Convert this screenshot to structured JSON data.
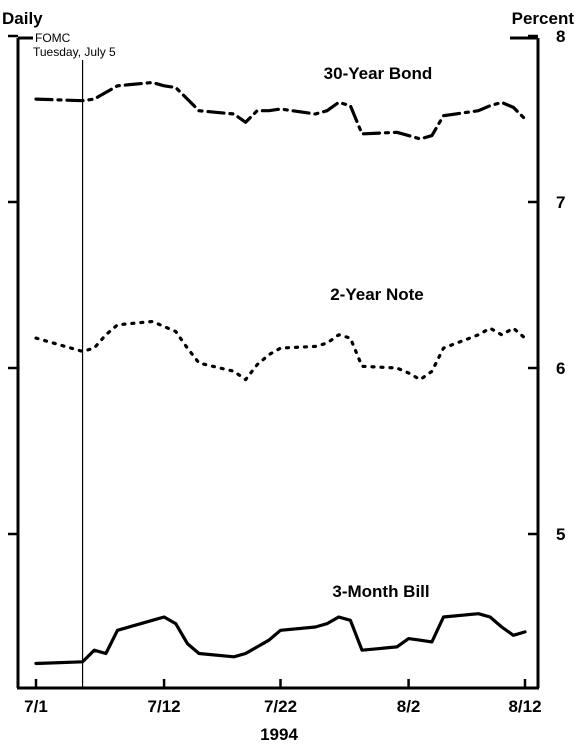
{
  "chart_data": {
    "type": "line",
    "top_left_label": "Daily",
    "top_right_label": "Percent",
    "event_label": "FOMC",
    "event_sublabel": "Tuesday, July 5",
    "event_x": "1994-07-05",
    "xlabel": "1994",
    "x_ticks": [
      {
        "date": "1994-07-01",
        "label": "7/1"
      },
      {
        "date": "1994-07-12",
        "label": "7/12"
      },
      {
        "date": "1994-07-22",
        "label": "7/22"
      },
      {
        "date": "1994-08-02",
        "label": "8/2"
      },
      {
        "date": "1994-08-12",
        "label": "8/12"
      }
    ],
    "x_range": [
      "1994-07-01",
      "1994-08-12"
    ],
    "y_ticks": [
      {
        "value": 5,
        "label": "5"
      },
      {
        "value": 6,
        "label": "6"
      },
      {
        "value": 7,
        "label": "7"
      },
      {
        "value": 8,
        "label": "8"
      }
    ],
    "ylim": [
      4.0,
      8.0
    ],
    "grid": false,
    "series": [
      {
        "name": "30-Year Bond",
        "style": "dashdot",
        "color": "#000000",
        "points": [
          [
            "1994-07-01",
            7.62
          ],
          [
            "1994-07-05",
            7.61
          ],
          [
            "1994-07-06",
            7.62
          ],
          [
            "1994-07-07",
            7.66
          ],
          [
            "1994-07-08",
            7.7
          ],
          [
            "1994-07-11",
            7.72
          ],
          [
            "1994-07-12",
            7.7
          ],
          [
            "1994-07-13",
            7.69
          ],
          [
            "1994-07-14",
            7.62
          ],
          [
            "1994-07-15",
            7.55
          ],
          [
            "1994-07-18",
            7.53
          ],
          [
            "1994-07-19",
            7.48
          ],
          [
            "1994-07-20",
            7.55
          ],
          [
            "1994-07-21",
            7.55
          ],
          [
            "1994-07-22",
            7.56
          ],
          [
            "1994-07-25",
            7.53
          ],
          [
            "1994-07-26",
            7.55
          ],
          [
            "1994-07-27",
            7.6
          ],
          [
            "1994-07-28",
            7.58
          ],
          [
            "1994-07-29",
            7.41
          ],
          [
            "1994-08-01",
            7.42
          ],
          [
            "1994-08-02",
            7.4
          ],
          [
            "1994-08-03",
            7.38
          ],
          [
            "1994-08-04",
            7.4
          ],
          [
            "1994-08-05",
            7.52
          ],
          [
            "1994-08-08",
            7.55
          ],
          [
            "1994-08-09",
            7.58
          ],
          [
            "1994-08-10",
            7.6
          ],
          [
            "1994-08-11",
            7.57
          ],
          [
            "1994-08-12",
            7.5
          ]
        ]
      },
      {
        "name": "2-Year Note",
        "style": "dotted",
        "color": "#000000",
        "points": [
          [
            "1994-07-01",
            6.18
          ],
          [
            "1994-07-05",
            6.1
          ],
          [
            "1994-07-06",
            6.12
          ],
          [
            "1994-07-07",
            6.2
          ],
          [
            "1994-07-08",
            6.26
          ],
          [
            "1994-07-11",
            6.28
          ],
          [
            "1994-07-12",
            6.25
          ],
          [
            "1994-07-13",
            6.22
          ],
          [
            "1994-07-14",
            6.12
          ],
          [
            "1994-07-15",
            6.03
          ],
          [
            "1994-07-18",
            5.98
          ],
          [
            "1994-07-19",
            5.93
          ],
          [
            "1994-07-20",
            6.02
          ],
          [
            "1994-07-21",
            6.08
          ],
          [
            "1994-07-22",
            6.12
          ],
          [
            "1994-07-25",
            6.13
          ],
          [
            "1994-07-26",
            6.15
          ],
          [
            "1994-07-27",
            6.2
          ],
          [
            "1994-07-28",
            6.18
          ],
          [
            "1994-07-29",
            6.01
          ],
          [
            "1994-08-01",
            6.0
          ],
          [
            "1994-08-02",
            5.97
          ],
          [
            "1994-08-03",
            5.93
          ],
          [
            "1994-08-04",
            5.98
          ],
          [
            "1994-08-05",
            6.12
          ],
          [
            "1994-08-08",
            6.2
          ],
          [
            "1994-08-09",
            6.24
          ],
          [
            "1994-08-10",
            6.2
          ],
          [
            "1994-08-11",
            6.24
          ],
          [
            "1994-08-12",
            6.18
          ]
        ]
      },
      {
        "name": "3-Month Bill",
        "style": "solid",
        "color": "#000000",
        "points": [
          [
            "1994-07-01",
            4.22
          ],
          [
            "1994-07-05",
            4.23
          ],
          [
            "1994-07-06",
            4.3
          ],
          [
            "1994-07-07",
            4.28
          ],
          [
            "1994-07-08",
            4.42
          ],
          [
            "1994-07-11",
            4.48
          ],
          [
            "1994-07-12",
            4.5
          ],
          [
            "1994-07-13",
            4.46
          ],
          [
            "1994-07-14",
            4.34
          ],
          [
            "1994-07-15",
            4.28
          ],
          [
            "1994-07-18",
            4.26
          ],
          [
            "1994-07-19",
            4.28
          ],
          [
            "1994-07-20",
            4.32
          ],
          [
            "1994-07-21",
            4.36
          ],
          [
            "1994-07-22",
            4.42
          ],
          [
            "1994-07-25",
            4.44
          ],
          [
            "1994-07-26",
            4.46
          ],
          [
            "1994-07-27",
            4.5
          ],
          [
            "1994-07-28",
            4.48
          ],
          [
            "1994-07-29",
            4.3
          ],
          [
            "1994-08-01",
            4.32
          ],
          [
            "1994-08-02",
            4.37
          ],
          [
            "1994-08-03",
            4.36
          ],
          [
            "1994-08-04",
            4.35
          ],
          [
            "1994-08-05",
            4.5
          ],
          [
            "1994-08-08",
            4.52
          ],
          [
            "1994-08-09",
            4.5
          ],
          [
            "1994-08-10",
            4.44
          ],
          [
            "1994-08-11",
            4.39
          ],
          [
            "1994-08-12",
            4.41
          ]
        ]
      }
    ]
  }
}
